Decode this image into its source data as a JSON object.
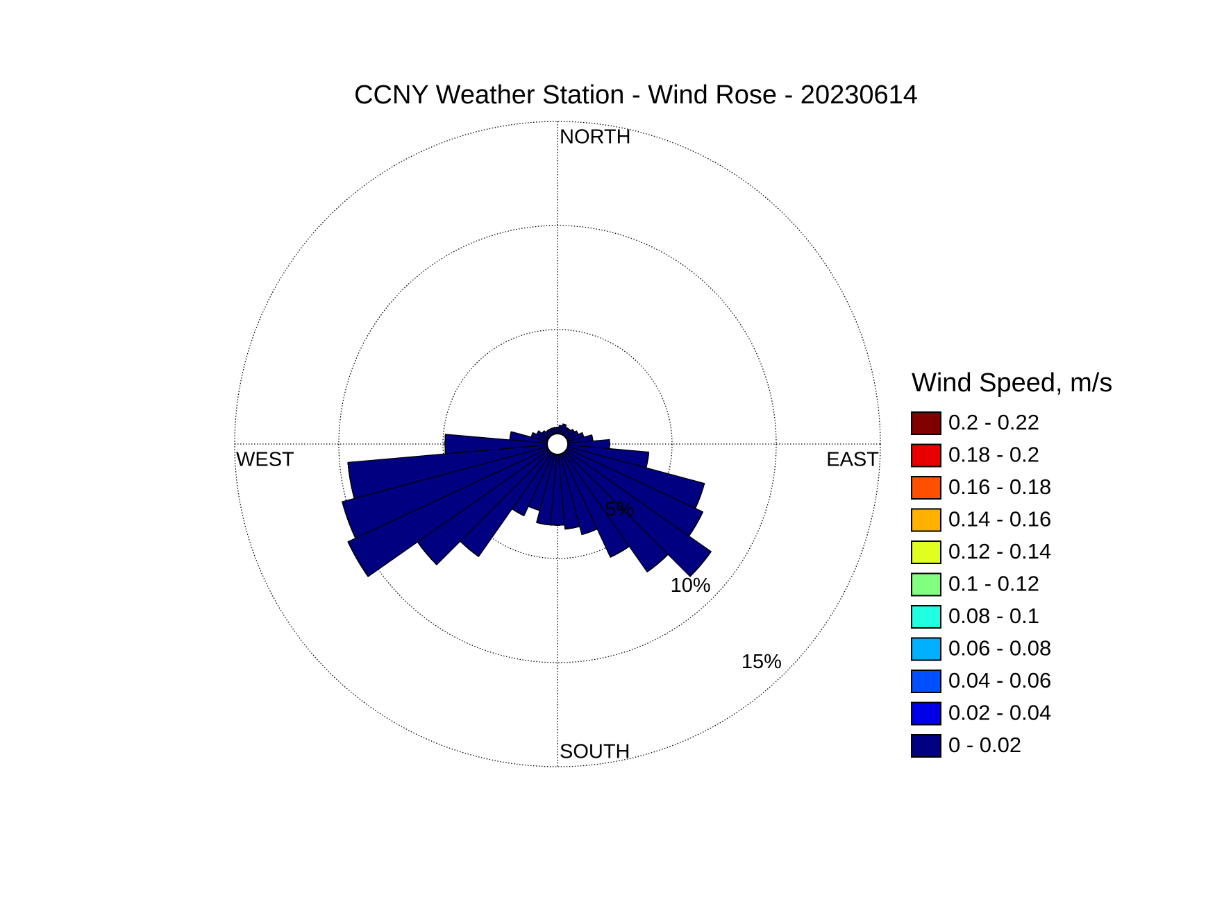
{
  "chart_data": {
    "type": "windrose",
    "title": "CCNY Weather Station - Wind Rose - 20230614",
    "direction_labels": [
      "NORTH",
      "EAST",
      "SOUTH",
      "WEST"
    ],
    "legend_title": "Wind Speed, m/s",
    "categories": [
      null,
      null,
      null,
      null,
      null,
      null,
      null,
      null,
      null,
      null,
      null,
      null,
      null,
      null,
      null,
      null,
      null,
      null,
      null,
      null,
      null,
      null,
      null,
      null,
      null,
      null,
      null,
      null,
      null,
      null,
      null,
      null,
      null,
      null,
      null,
      null
    ],
    "rlim": [
      0,
      15
    ],
    "rticks": [
      {
        "value": 5,
        "label": "5%"
      },
      {
        "value": 10,
        "label": "10%"
      },
      {
        "value": 15,
        "label": "15%"
      }
    ],
    "grid": true,
    "series": [
      {
        "name": "0 - 0.02",
        "color": "#000080",
        "values": [
          0.3,
          0.4,
          0.5,
          0.4,
          0.4,
          0.5,
          0.6,
          0.8,
          1.2,
          2.0,
          3.9,
          6.8,
          7.2,
          8.5,
          7.0,
          5.5,
          4.0,
          3.6,
          3.4,
          3.4,
          2.8,
          3.3,
          6.1,
          7.7,
          10.6,
          10.2,
          9.6,
          4.9,
          1.8,
          0.8,
          0.6,
          0.4,
          0.3,
          0.3,
          0.3,
          0.3
        ]
      },
      {
        "name": "0.02 - 0.04",
        "color": "#0000e8",
        "values": [
          0,
          0,
          0,
          0,
          0,
          0,
          0,
          0,
          0,
          0,
          0,
          0,
          0,
          0,
          0,
          0,
          0,
          0,
          0,
          0,
          0,
          0,
          0,
          0,
          0,
          0,
          0,
          0,
          0,
          0,
          0,
          0,
          0,
          0,
          0,
          0
        ]
      },
      {
        "name": "0.04 - 0.06",
        "color": "#0050ff",
        "values": [
          0,
          0,
          0,
          0,
          0,
          0,
          0,
          0,
          0,
          0,
          0,
          0,
          0,
          0,
          0,
          0,
          0,
          0,
          0,
          0,
          0,
          0,
          0,
          0,
          0,
          0,
          0,
          0,
          0,
          0,
          0,
          0,
          0,
          0,
          0,
          0
        ]
      },
      {
        "name": "0.06 - 0.08",
        "color": "#00b0ff",
        "values": [
          0,
          0,
          0,
          0,
          0,
          0,
          0,
          0,
          0,
          0,
          0,
          0,
          0,
          0,
          0,
          0,
          0,
          0,
          0,
          0,
          0,
          0,
          0,
          0,
          0,
          0,
          0,
          0,
          0,
          0,
          0,
          0,
          0,
          0,
          0,
          0
        ]
      },
      {
        "name": "0.08 - 0.1",
        "color": "#20ffe0",
        "values": [
          0,
          0,
          0,
          0,
          0,
          0,
          0,
          0,
          0,
          0,
          0,
          0,
          0,
          0,
          0,
          0,
          0,
          0,
          0,
          0,
          0,
          0,
          0,
          0,
          0,
          0,
          0,
          0,
          0,
          0,
          0,
          0,
          0,
          0,
          0,
          0
        ]
      },
      {
        "name": "0.1 - 0.12",
        "color": "#80ff80",
        "values": [
          0,
          0,
          0,
          0,
          0,
          0,
          0,
          0,
          0,
          0,
          0,
          0,
          0,
          0,
          0,
          0,
          0,
          0,
          0,
          0,
          0,
          0,
          0,
          0,
          0,
          0,
          0,
          0,
          0,
          0,
          0,
          0,
          0,
          0,
          0,
          0
        ]
      },
      {
        "name": "0.12 - 0.14",
        "color": "#e0ff20",
        "values": [
          0,
          0,
          0,
          0,
          0,
          0,
          0,
          0,
          0,
          0,
          0,
          0,
          0,
          0,
          0,
          0,
          0,
          0,
          0,
          0,
          0,
          0,
          0,
          0,
          0,
          0,
          0,
          0,
          0,
          0,
          0,
          0,
          0,
          0,
          0,
          0
        ]
      },
      {
        "name": "0.14 - 0.16",
        "color": "#ffb000",
        "values": [
          0,
          0,
          0,
          0,
          0,
          0,
          0,
          0,
          0,
          0,
          0,
          0,
          0,
          0,
          0,
          0,
          0,
          0,
          0,
          0,
          0,
          0,
          0,
          0,
          0,
          0,
          0,
          0,
          0,
          0,
          0,
          0,
          0,
          0,
          0,
          0
        ]
      },
      {
        "name": "0.16 - 0.18",
        "color": "#ff5000",
        "values": [
          0,
          0,
          0,
          0,
          0,
          0,
          0,
          0,
          0,
          0,
          0,
          0,
          0,
          0,
          0,
          0,
          0,
          0,
          0,
          0,
          0,
          0,
          0,
          0,
          0,
          0,
          0,
          0,
          0,
          0,
          0,
          0,
          0,
          0,
          0,
          0
        ]
      },
      {
        "name": "0.18 - 0.2",
        "color": "#e80000",
        "values": [
          0,
          0,
          0,
          0,
          0,
          0,
          0,
          0,
          0,
          0,
          0,
          0,
          0,
          0,
          0,
          0,
          0,
          0,
          0,
          0,
          0,
          0,
          0,
          0,
          0,
          0,
          0,
          0,
          0,
          0,
          0,
          0,
          0,
          0,
          0,
          0
        ]
      },
      {
        "name": "0.2 - 0.22",
        "color": "#800000",
        "values": [
          0,
          0,
          0,
          0,
          0,
          0,
          0,
          0,
          0,
          0,
          0,
          0,
          0,
          0,
          0,
          0,
          0,
          0,
          0,
          0,
          0,
          0,
          0,
          0,
          0,
          0,
          0,
          0,
          0,
          0,
          0,
          0,
          0,
          0,
          0,
          0
        ]
      }
    ]
  }
}
